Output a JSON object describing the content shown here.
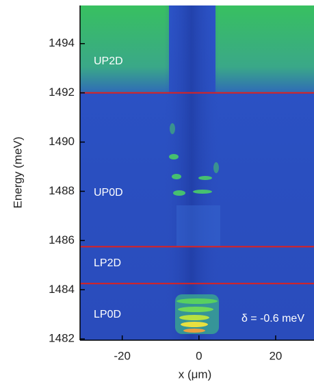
{
  "chart_data": {
    "type": "heatmap",
    "xlabel": "x (μm)",
    "ylabel": "Energy (meV)",
    "xlim": [
      -31,
      30
    ],
    "ylim": [
      1481.95,
      1495.55
    ],
    "xticks": [
      -20,
      0,
      20
    ],
    "yticks": [
      1482,
      1484,
      1486,
      1488,
      1490,
      1492,
      1494
    ],
    "hlines": [
      1492.0,
      1485.75,
      1484.25
    ],
    "hline_color": "#e0201c",
    "annotations": [
      "UP2D",
      "UP0D",
      "LP2D",
      "LP0D",
      "δ = -0.6 meV"
    ]
  }
}
